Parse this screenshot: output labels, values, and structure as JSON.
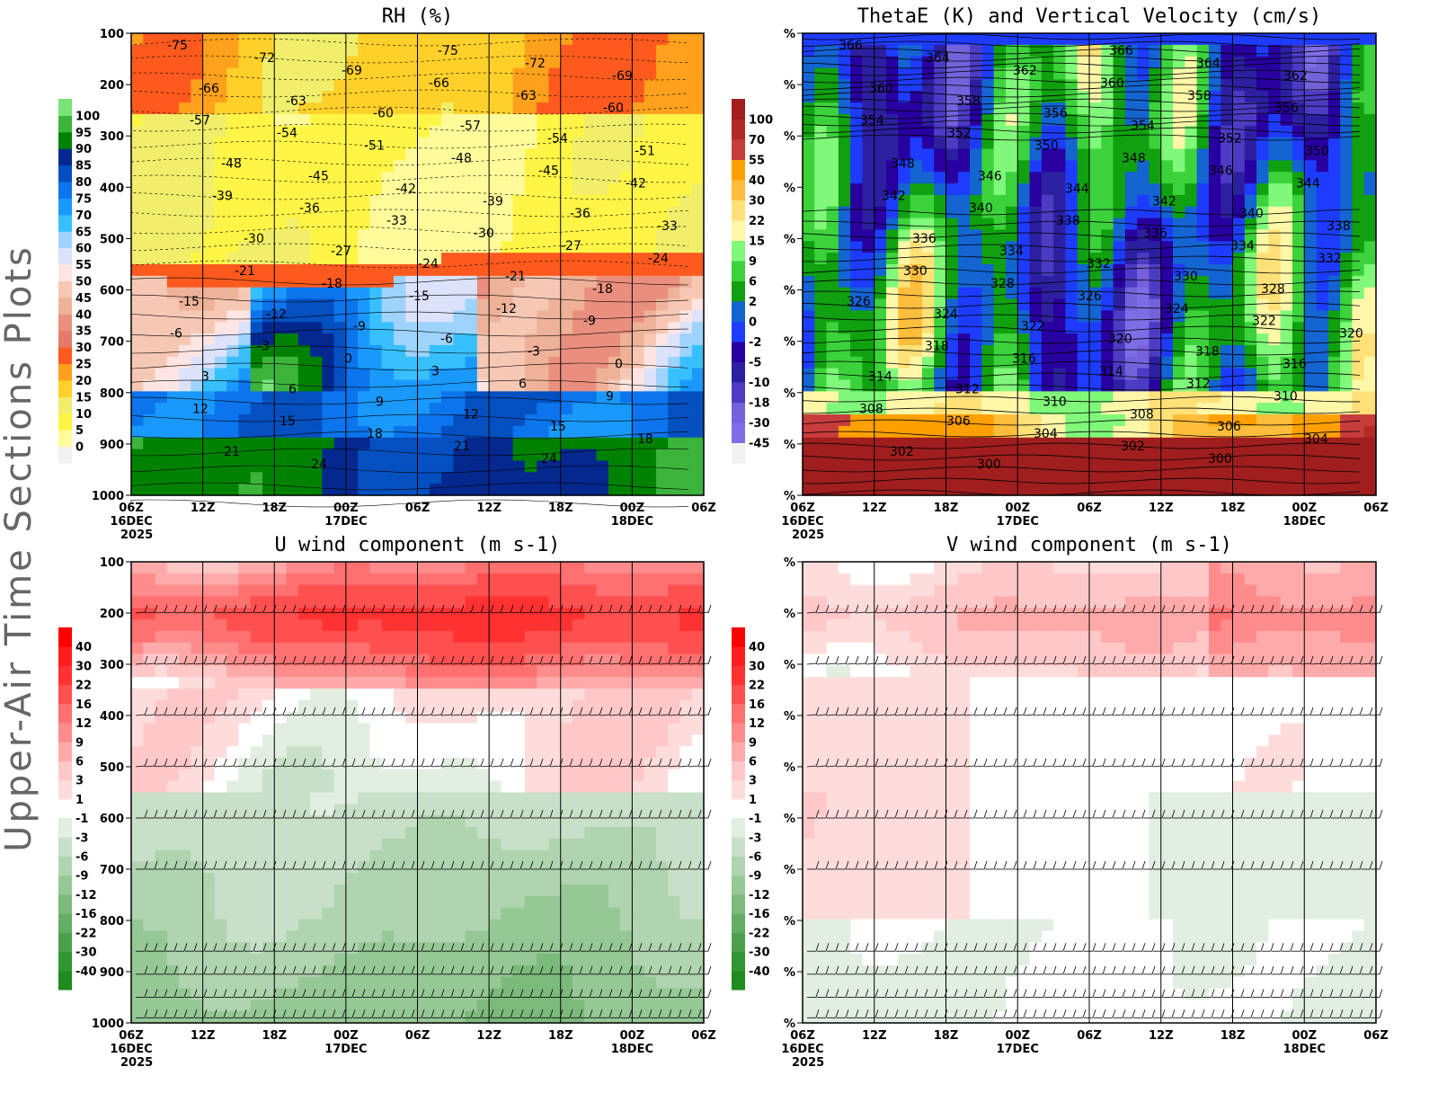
{
  "side_title": "Upper-Air Time Sections Plots",
  "chart_data": [
    {
      "type": "heatmap",
      "id": "rh",
      "title": "RH (%)",
      "yticks": [
        "100",
        "200",
        "300",
        "400",
        "500",
        "600",
        "700",
        "800",
        "900",
        "1000"
      ],
      "xticks": [
        "06Z",
        "12Z",
        "18Z",
        "00Z",
        "06Z",
        "12Z",
        "18Z",
        "00Z",
        "06Z"
      ],
      "xdates": {
        "0": "16DEC",
        "3": "17DEC",
        "7": "18DEC"
      },
      "xyear": "2025",
      "colorbar_levels": [
        "0",
        "5",
        "10",
        "15",
        "20",
        "25",
        "30",
        "35",
        "40",
        "45",
        "50",
        "55",
        "60",
        "65",
        "70",
        "75",
        "80",
        "85",
        "90",
        "95",
        "100"
      ],
      "colorbar_colors": [
        "#f2f2f2",
        "#fffb9a",
        "#fff546",
        "#f0ee6a",
        "#ffd02a",
        "#ffa11c",
        "#ff5a1e",
        "#e57a6a",
        "#ea8f7e",
        "#eeb298",
        "#f6c8b4",
        "#fde5e3",
        "#dde2fb",
        "#9dd3fc",
        "#38c0fe",
        "#1a99fc",
        "#0c74ec",
        "#0450c0",
        "#04288e",
        "#008200",
        "#3cb43c",
        "#78e478"
      ],
      "contour_labels": [
        "-75",
        "-72",
        "-69",
        "-66",
        "-63",
        "-60",
        "-57",
        "-54",
        "-51",
        "-48",
        "-45",
        "-42",
        "-39",
        "-36",
        "-33",
        "-30",
        "-27",
        "-24",
        "-21",
        "-18",
        "-15",
        "-12",
        "-9",
        "-6",
        "-3",
        "0",
        "3",
        "6",
        "9",
        "12",
        "15",
        "18",
        "21",
        "24"
      ]
    },
    {
      "type": "heatmap",
      "id": "thetae",
      "title": "ThetaE (K) and Vertical Velocity (cm/s)",
      "ytick_label": "%",
      "xticks": [
        "06Z",
        "12Z",
        "18Z",
        "00Z",
        "06Z",
        "12Z",
        "18Z",
        "00Z",
        "06Z"
      ],
      "xdates": {
        "0": "16DEC",
        "3": "17DEC",
        "7": "18DEC"
      },
      "xyear": "2025",
      "colorbar_levels": [
        "-45",
        "-30",
        "-18",
        "-10",
        "-5",
        "-2",
        "0",
        "2",
        "6",
        "9",
        "15",
        "22",
        "30",
        "40",
        "55",
        "70",
        "100"
      ],
      "colorbar_colors": [
        "#f2f2f2",
        "#7e6ee6",
        "#7462da",
        "#4c3cc4",
        "#2d20a0",
        "#2800a0",
        "#1e3cff",
        "#1464d2",
        "#10a010",
        "#3cd23c",
        "#80f87a",
        "#fff7a8",
        "#ffe178",
        "#ffbd3c",
        "#ffa000",
        "#c83c3c",
        "#b42828",
        "#a01e1e"
      ],
      "contour_labels": [
        "366",
        "364",
        "362",
        "360",
        "358",
        "356",
        "354",
        "352",
        "350",
        "348",
        "346",
        "344",
        "342",
        "340",
        "338",
        "336",
        "334",
        "332",
        "330",
        "328",
        "326",
        "324",
        "322",
        "320",
        "318",
        "316",
        "314",
        "312",
        "310",
        "308",
        "306",
        "304",
        "302",
        "300"
      ]
    },
    {
      "type": "heatmap",
      "id": "u",
      "title": "U wind component (m s-1)",
      "yticks": [
        "100",
        "200",
        "300",
        "400",
        "500",
        "600",
        "700",
        "800",
        "900",
        "1000"
      ],
      "xticks": [
        "06Z",
        "12Z",
        "18Z",
        "00Z",
        "06Z",
        "12Z",
        "18Z",
        "00Z",
        "06Z"
      ],
      "xdates": {
        "0": "16DEC",
        "3": "17DEC",
        "7": "18DEC"
      },
      "xyear": "2025",
      "colorbar_levels": [
        "-40",
        "-30",
        "-22",
        "-16",
        "-12",
        "-9",
        "-6",
        "-3",
        "-1",
        "1",
        "3",
        "6",
        "9",
        "12",
        "16",
        "22",
        "30",
        "40"
      ],
      "colorbar_colors": [
        "#1e8c1e",
        "#329632",
        "#4ba04b",
        "#64ad64",
        "#7cba7c",
        "#96c896",
        "#afd4af",
        "#c8e0c8",
        "#e1eee1",
        "#ffffff",
        "#ffdcdc",
        "#ffc8c8",
        "#ffaaaa",
        "#ff8c8c",
        "#ff7070",
        "#ff5050",
        "#ff3232",
        "#ff1e1e",
        "#ff0000"
      ]
    },
    {
      "type": "heatmap",
      "id": "v",
      "title": "V wind component (m s-1)",
      "ytick_label": "%",
      "xticks": [
        "06Z",
        "12Z",
        "18Z",
        "00Z",
        "06Z",
        "12Z",
        "18Z",
        "00Z",
        "06Z"
      ],
      "xdates": {
        "0": "16DEC",
        "3": "17DEC",
        "7": "18DEC"
      },
      "xyear": "2025",
      "colorbar_levels": [
        "-40",
        "-30",
        "-22",
        "-16",
        "-12",
        "-9",
        "-6",
        "-3",
        "-1",
        "1",
        "3",
        "6",
        "9",
        "12",
        "16",
        "22",
        "30",
        "40"
      ],
      "colorbar_colors": [
        "#1e8c1e",
        "#329632",
        "#4ba04b",
        "#64ad64",
        "#7cba7c",
        "#96c896",
        "#afd4af",
        "#c8e0c8",
        "#e1eee1",
        "#ffffff",
        "#ffdcdc",
        "#ffc8c8",
        "#ffaaaa",
        "#ff8c8c",
        "#ff7070",
        "#ff5050",
        "#ff3232",
        "#ff1e1e",
        "#ff0000"
      ]
    }
  ]
}
